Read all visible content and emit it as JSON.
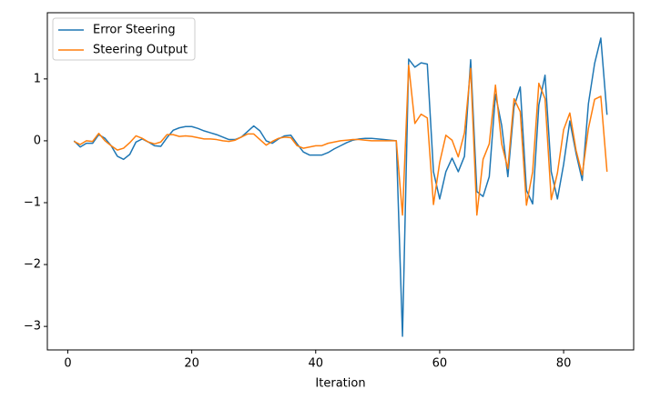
{
  "chart_data": {
    "type": "line",
    "xlabel": "Iteration",
    "x": [
      1,
      2,
      3,
      4,
      5,
      6,
      7,
      8,
      9,
      10,
      11,
      12,
      13,
      14,
      15,
      16,
      17,
      18,
      19,
      20,
      21,
      22,
      23,
      24,
      25,
      26,
      27,
      28,
      29,
      30,
      31,
      32,
      33,
      34,
      35,
      36,
      37,
      38,
      39,
      40,
      41,
      42,
      43,
      44,
      45,
      46,
      47,
      48,
      49,
      50,
      51,
      52,
      53,
      54,
      55,
      56,
      57,
      58,
      59,
      60,
      61,
      62,
      63,
      64,
      65,
      66,
      67,
      68,
      69,
      70,
      71,
      72,
      73,
      74,
      75,
      76,
      77,
      78,
      79,
      80,
      81,
      82,
      83,
      84,
      85,
      86,
      87
    ],
    "series": [
      {
        "name": "Error Steering",
        "color": "#1f77b4",
        "values": [
          0.0,
          -0.1,
          -0.04,
          -0.04,
          0.1,
          0.04,
          -0.08,
          -0.25,
          -0.3,
          -0.22,
          -0.02,
          0.03,
          -0.02,
          -0.08,
          -0.09,
          0.05,
          0.17,
          0.21,
          0.23,
          0.23,
          0.2,
          0.16,
          0.13,
          0.1,
          0.06,
          0.02,
          0.02,
          0.06,
          0.15,
          0.24,
          0.16,
          0.0,
          -0.04,
          0.03,
          0.08,
          0.09,
          -0.05,
          -0.18,
          -0.23,
          -0.23,
          -0.23,
          -0.19,
          -0.13,
          -0.08,
          -0.03,
          0.01,
          0.03,
          0.04,
          0.04,
          0.03,
          0.02,
          0.01,
          0.0,
          -3.16,
          1.32,
          1.19,
          1.26,
          1.24,
          -0.5,
          -0.94,
          -0.5,
          -0.28,
          -0.5,
          -0.25,
          1.31,
          -0.82,
          -0.9,
          -0.58,
          0.75,
          0.25,
          -0.58,
          0.55,
          0.87,
          -0.8,
          -1.02,
          0.58,
          1.06,
          -0.5,
          -0.94,
          -0.38,
          0.32,
          -0.2,
          -0.64,
          0.6,
          1.25,
          1.66,
          0.42
        ]
      },
      {
        "name": "Steering Output",
        "color": "#ff7f0e",
        "values": [
          -0.01,
          -0.06,
          0.0,
          -0.01,
          0.12,
          0.0,
          -0.08,
          -0.15,
          -0.12,
          -0.03,
          0.08,
          0.04,
          -0.02,
          -0.05,
          -0.02,
          0.1,
          0.1,
          0.07,
          0.08,
          0.07,
          0.05,
          0.03,
          0.03,
          0.02,
          0.0,
          -0.01,
          0.01,
          0.06,
          0.11,
          0.11,
          0.02,
          -0.07,
          -0.01,
          0.04,
          0.06,
          0.05,
          -0.08,
          -0.12,
          -0.1,
          -0.08,
          -0.08,
          -0.04,
          -0.02,
          0.0,
          0.01,
          0.02,
          0.02,
          0.01,
          0.0,
          0.0,
          0.0,
          0.0,
          0.0,
          -1.2,
          1.22,
          0.28,
          0.43,
          0.37,
          -1.03,
          -0.35,
          0.09,
          0.01,
          -0.26,
          0.13,
          1.17,
          -1.2,
          -0.3,
          -0.05,
          0.9,
          -0.05,
          -0.45,
          0.68,
          0.47,
          -1.04,
          -0.5,
          0.93,
          0.68,
          -0.95,
          -0.52,
          0.18,
          0.45,
          -0.15,
          -0.55,
          0.2,
          0.67,
          0.72,
          -0.5
        ]
      }
    ],
    "xlim": [
      -3.3,
      91.3
    ],
    "ylim": [
      -3.38,
      2.07
    ],
    "xticks": [
      0,
      20,
      40,
      60,
      80
    ],
    "yticks": [
      {
        "value": -3,
        "label": "−3"
      },
      {
        "value": -2,
        "label": "−2"
      },
      {
        "value": -1,
        "label": "−1"
      },
      0,
      1
    ],
    "legend": "upper left",
    "grid": false
  }
}
